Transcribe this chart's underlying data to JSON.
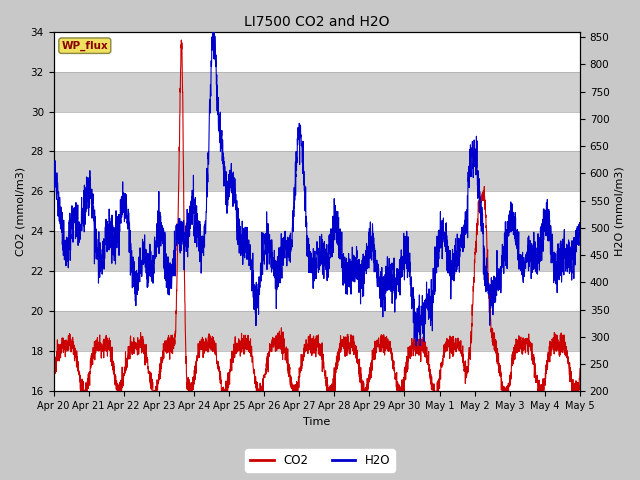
{
  "title": "LI7500 CO2 and H2O",
  "xlabel": "Time",
  "ylabel_left": "CO2 (mmol/m3)",
  "ylabel_right": "H2O (mmol/m3)",
  "ylim_left": [
    16,
    34
  ],
  "ylim_right": [
    200,
    860
  ],
  "yticks_left": [
    16,
    18,
    20,
    22,
    24,
    26,
    28,
    30,
    32,
    34
  ],
  "yticks_right": [
    200,
    250,
    300,
    350,
    400,
    450,
    500,
    550,
    600,
    650,
    700,
    750,
    800,
    850
  ],
  "xtick_labels": [
    "Apr 20",
    "Apr 21",
    "Apr 22",
    "Apr 23",
    "Apr 24",
    "Apr 25",
    "Apr 26",
    "Apr 27",
    "Apr 28",
    "Apr 29",
    "Apr 30",
    "May 1",
    "May 2",
    "May 3",
    "May 4",
    "May 5"
  ],
  "co2_color": "#cc0000",
  "h2o_color": "#0000cc",
  "annotation_text": "WP_flux",
  "annotation_bg": "#f0e060",
  "annotation_border": "#888840",
  "legend_co2": "CO2",
  "legend_h2o": "H2O",
  "fig_bg": "#c8c8c8",
  "plot_bg": "#e8e8e8",
  "band_light": "#ffffff",
  "band_dark": "#d0d0d0"
}
